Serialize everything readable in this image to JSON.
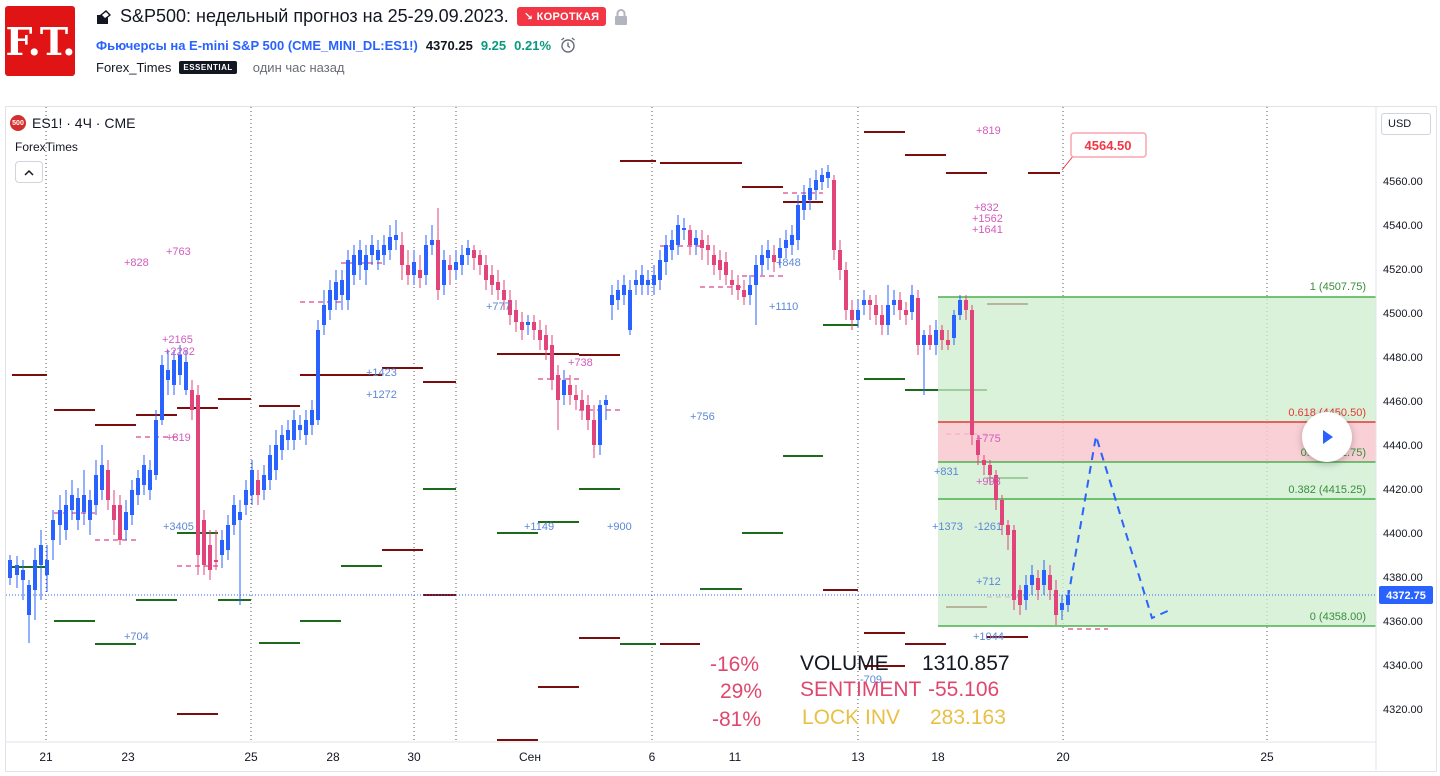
{
  "header": {
    "logo_text": "F.T.",
    "title": "S&P500: недельный прогноз на 25-29.09.2023.",
    "badge": "↘ КОРОТКАЯ",
    "symbol_prefix": "Фьючерсы на E-mini S&P 500",
    "symbol_code": "(CME_MINI_DL:ES1!)",
    "price": "4370.25",
    "change": "9.25",
    "change_pct": "0.21%",
    "author": "Forex_Times",
    "author_badge": "ESSENTIAL",
    "published": "один час назад"
  },
  "chart": {
    "legend": "ES1! · 4Ч · CME",
    "es_badge": "500",
    "indicator": "ForexTimes",
    "currency": "USD",
    "last_price": "4372.75",
    "target_label": "4564.50",
    "y_ticks": [
      "4560.00",
      "4540.00",
      "4520.00",
      "4500.00",
      "4480.00",
      "4460.00",
      "4440.00",
      "4420.00",
      "4400.00",
      "4380.00",
      "4360.00",
      "4340.00",
      "4320.00"
    ],
    "x_ticks": [
      "21",
      "23",
      "25",
      "28",
      "30",
      "Сен",
      "6",
      "11",
      "13",
      "18",
      "20",
      "25"
    ],
    "fib": {
      "l1": "1 (4507.75)",
      "l618": "0.618 (4450.50)",
      "l5": "0.5 (4432.75)",
      "l382": "0.382 (4415.25)",
      "l0": "0 (4358.00)"
    },
    "annotations_blue": [
      "+704",
      "+3405",
      "+1272",
      "+1423",
      "+777",
      "+1149",
      "+900",
      "+756",
      "+1110",
      "+848",
      "+831",
      "+1373",
      "-1261",
      "+712",
      "+1044",
      "-709"
    ],
    "annotations_pink": [
      "+828",
      "+763",
      "+2165",
      "+2282",
      "+819",
      "+738",
      "+819",
      "+832",
      "+1562",
      "+1641",
      "+775",
      "+993"
    ]
  },
  "stats": {
    "rows": [
      {
        "pct": "-16%",
        "label": "VOLUME",
        "value": "1310.857"
      },
      {
        "pct": "29%",
        "label": "SENTIMENT",
        "value": "-55.106"
      },
      {
        "pct": "-81%",
        "label": "LOCK INV",
        "value": "283.163"
      }
    ]
  }
}
